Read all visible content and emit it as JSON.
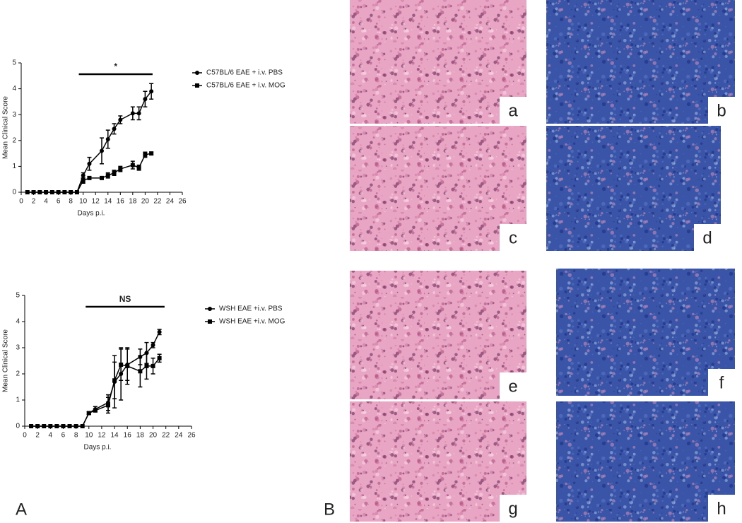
{
  "panel_labels": [
    "A",
    "B"
  ],
  "chart_data": [
    {
      "type": "line",
      "x_label": "Days p.i.",
      "y_label": "Mean Clinical Score",
      "xlim": [
        0,
        26
      ],
      "xticks": [
        0,
        2,
        4,
        6,
        8,
        10,
        12,
        14,
        16,
        18,
        20,
        22,
        24,
        26
      ],
      "ylim": [
        0,
        5
      ],
      "yticks": [
        0,
        1,
        2,
        3,
        4,
        5
      ],
      "x": [
        1,
        2,
        3,
        4,
        5,
        6,
        7,
        8,
        9,
        10,
        11,
        13,
        14,
        15,
        16,
        18,
        19,
        20,
        21
      ],
      "annotation": {
        "text": "*",
        "from": 9.3,
        "to": 21.2
      },
      "series": [
        {
          "name": "C57BL/6 EAE + i.v. PBS",
          "marker": "circle",
          "color": "#000000",
          "values": [
            0,
            0,
            0,
            0,
            0,
            0,
            0,
            0,
            0,
            0.65,
            1.1,
            1.6,
            2.05,
            2.45,
            2.8,
            3.05,
            3.05,
            3.6,
            3.9
          ],
          "errors": [
            0,
            0,
            0,
            0,
            0,
            0,
            0,
            0,
            0,
            0.1,
            0.25,
            0.5,
            0.35,
            0.2,
            0.15,
            0.25,
            0.25,
            0.3,
            0.3
          ]
        },
        {
          "name": "C57BL/6 EAE + i.v. MOG",
          "marker": "square",
          "color": "#000000",
          "values": [
            0,
            0,
            0,
            0,
            0,
            0,
            0,
            0,
            0,
            0.45,
            0.55,
            0.55,
            0.65,
            0.75,
            0.9,
            1.05,
            0.95,
            1.45,
            1.5
          ],
          "errors": [
            0,
            0,
            0,
            0,
            0,
            0,
            0,
            0,
            0,
            0.1,
            0.05,
            0.05,
            0.1,
            0.1,
            0.1,
            0.15,
            0.1,
            0.1,
            0.05
          ]
        }
      ]
    },
    {
      "type": "line",
      "x_label": "Days p.i.",
      "y_label": "Mean Clinical Score",
      "xlim": [
        0,
        26
      ],
      "xticks": [
        0,
        2,
        4,
        6,
        8,
        10,
        12,
        14,
        16,
        18,
        20,
        22,
        24,
        26
      ],
      "ylim": [
        0,
        5
      ],
      "yticks": [
        0,
        1,
        2,
        3,
        4,
        5
      ],
      "x": [
        1,
        2,
        3,
        4,
        5,
        6,
        7,
        8,
        9,
        10,
        11,
        13,
        14,
        15,
        16,
        18,
        19,
        20,
        21
      ],
      "annotation": {
        "text": "NS",
        "from": 9.5,
        "to": 21.8
      },
      "series": [
        {
          "name": "WSH EAE +i.v. PBS",
          "marker": "circle",
          "color": "#000000",
          "values": [
            0,
            0,
            0,
            0,
            0,
            0,
            0,
            0,
            0,
            0.5,
            0.65,
            0.9,
            1.7,
            2.0,
            2.35,
            2.65,
            2.8,
            3.1,
            3.6
          ],
          "errors": [
            0,
            0,
            0,
            0,
            0,
            0,
            0,
            0,
            0,
            0.05,
            0.1,
            0.3,
            1.0,
            1.0,
            0.6,
            0.3,
            0.4,
            0.1,
            0.1
          ]
        },
        {
          "name": "WSH EAE +i.v. MOG",
          "marker": "square",
          "color": "#000000",
          "values": [
            0,
            0,
            0,
            0,
            0,
            0,
            0,
            0,
            0,
            0.5,
            0.6,
            0.8,
            1.75,
            2.35,
            2.3,
            2.1,
            2.3,
            2.3,
            2.6
          ],
          "errors": [
            0,
            0,
            0,
            0,
            0,
            0,
            0,
            0,
            0,
            0.05,
            0.05,
            0.3,
            0.7,
            0.6,
            0.7,
            0.6,
            0.5,
            0.3,
            0.15
          ]
        }
      ]
    }
  ],
  "images": [
    "a",
    "b",
    "c",
    "d",
    "e",
    "f",
    "g",
    "h"
  ]
}
